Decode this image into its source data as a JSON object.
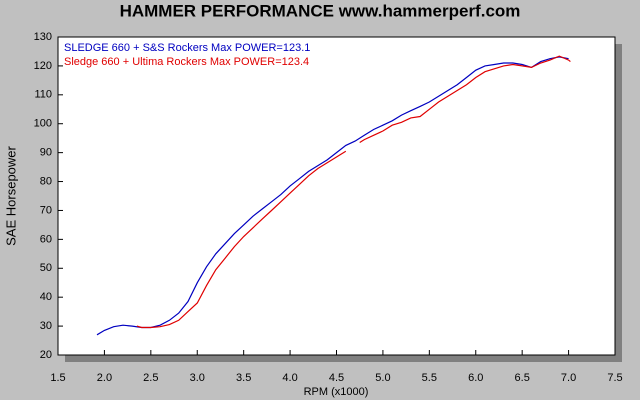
{
  "chart_data": {
    "type": "line",
    "title": "HAMMER PERFORMANCE www.hammerperf.com",
    "x_label": "RPM (x1000)",
    "y_label": "SAE Horsepower",
    "xlim": [
      1.5,
      7.5
    ],
    "ylim": [
      20,
      130
    ],
    "xticks": [
      1.5,
      {
        "value": 2,
        "label": "2.0"
      },
      2.5,
      {
        "value": 3,
        "label": "3.0"
      },
      3.5,
      {
        "value": 4,
        "label": "4.0"
      },
      4.5,
      {
        "value": 5,
        "label": "5.0"
      },
      5.5,
      {
        "value": 6,
        "label": "6.0"
      },
      6.5,
      {
        "value": 7,
        "label": "7.0"
      },
      7.5
    ],
    "yticks": [
      20,
      30,
      40,
      50,
      60,
      70,
      80,
      90,
      100,
      110,
      120,
      130
    ],
    "grid": false,
    "legend": "top-left",
    "series": [
      {
        "name": "SLEDGE 660 + S&S Rockers  Max POWER=123.1",
        "color": "#0000c0",
        "x": [
          1.92,
          2.0,
          2.1,
          2.2,
          2.3,
          2.4,
          2.5,
          2.6,
          2.7,
          2.8,
          2.9,
          3.0,
          3.1,
          3.2,
          3.3,
          3.4,
          3.5,
          3.6,
          3.7,
          3.8,
          3.9,
          4.0,
          4.1,
          4.2,
          4.3,
          4.4,
          4.5,
          4.6,
          4.7,
          4.8,
          4.9,
          5.0,
          5.1,
          5.2,
          5.3,
          5.4,
          5.5,
          5.6,
          5.7,
          5.8,
          5.9,
          6.0,
          6.1,
          6.2,
          6.3,
          6.4,
          6.5,
          6.6,
          6.7,
          6.8,
          6.9,
          7.0
        ],
        "values": [
          27,
          28.5,
          29.8,
          30.3,
          30,
          29.5,
          29.5,
          30.3,
          32,
          34.5,
          38.5,
          45,
          50.5,
          55,
          58.5,
          62,
          65,
          68,
          70.5,
          73,
          75.5,
          78.5,
          81,
          83.5,
          85.5,
          87.5,
          90,
          92.5,
          94,
          96,
          98,
          99.5,
          101,
          103,
          104.5,
          106,
          107.5,
          109.5,
          111.5,
          113.5,
          116,
          118.5,
          120,
          120.5,
          121,
          121,
          120.5,
          119.5,
          121.5,
          122.5,
          123.1,
          122.5
        ]
      },
      {
        "name": "Sledge 660 + Ultima Rockers  Max POWER=123.4",
        "color": "#e00000",
        "x": [
          2.35,
          2.4,
          2.5,
          2.6,
          2.7,
          2.8,
          2.9,
          3.0,
          3.1,
          3.2,
          3.3,
          3.4,
          3.5,
          3.6,
          3.7,
          3.8,
          3.9,
          4.0,
          4.1,
          4.2,
          4.3,
          4.4,
          4.5,
          4.6,
          4.68,
          4.75,
          4.8,
          4.9,
          5.0,
          5.1,
          5.2,
          5.3,
          5.4,
          5.5,
          5.6,
          5.7,
          5.8,
          5.9,
          6.0,
          6.1,
          6.2,
          6.3,
          6.4,
          6.5,
          6.6,
          6.7,
          6.8,
          6.9,
          7.0,
          7.02
        ],
        "values": [
          30,
          29.5,
          29.5,
          29.8,
          30.5,
          32,
          35,
          38,
          44,
          49.5,
          53.5,
          57.5,
          61,
          64,
          67,
          70,
          73,
          76,
          79,
          82,
          84.5,
          86.5,
          88.5,
          90.5,
          null,
          93.5,
          94.5,
          96,
          97.5,
          99.5,
          100.5,
          102,
          102.5,
          105,
          107.5,
          109.5,
          111.5,
          113.5,
          116,
          118,
          119,
          120,
          120.5,
          120,
          119.5,
          121,
          122,
          123.4,
          122,
          121.5
        ]
      }
    ]
  }
}
